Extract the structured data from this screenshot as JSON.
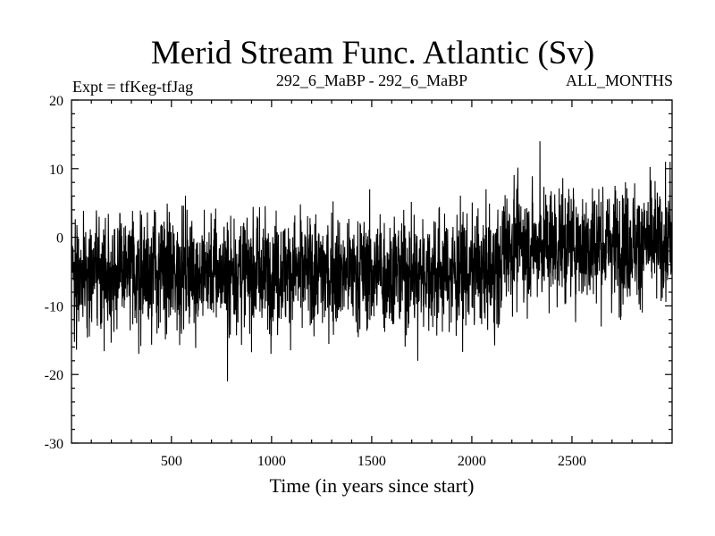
{
  "chart_data": {
    "type": "line",
    "title": "Merid Stream Func. Atlantic (Sv)",
    "left_label": "Expt = tfKeg-tfJag",
    "center_label": "292_6_MaBP - 292_6_MaBP",
    "right_label": "ALL_MONTHS",
    "xlabel": "Time (in years since start)",
    "ylabel": "",
    "xlim": [
      1,
      3000
    ],
    "ylim": [
      -30,
      20
    ],
    "x_ticks": [
      500,
      1000,
      1500,
      2000,
      2500
    ],
    "y_ticks": [
      -30,
      -20,
      -10,
      0,
      10,
      20
    ],
    "x_tick_labels": [
      "500",
      "1000",
      "1500",
      "2000",
      "2500"
    ],
    "y_tick_labels": [
      "-30",
      "-20",
      "-10",
      "0",
      "10",
      "20"
    ],
    "grid": false,
    "line_color": "#000000",
    "series": [
      {
        "x_start": 1,
        "x_end": 3000,
        "x_step": 1,
        "segments": [
          {
            "x_from": 1,
            "x_to": 2150,
            "mean": -5,
            "typical_range": [
              -12,
              3
            ]
          },
          {
            "x_from": 2150,
            "x_to": 3000,
            "mean": -1,
            "typical_range": [
              -8,
              7
            ]
          }
        ],
        "extremes": [
          {
            "x": 780,
            "y": -21
          },
          {
            "x": 1730,
            "y": -18
          },
          {
            "x": 2340,
            "y": 14
          },
          {
            "x": 2990,
            "y": 11
          }
        ]
      }
    ]
  }
}
